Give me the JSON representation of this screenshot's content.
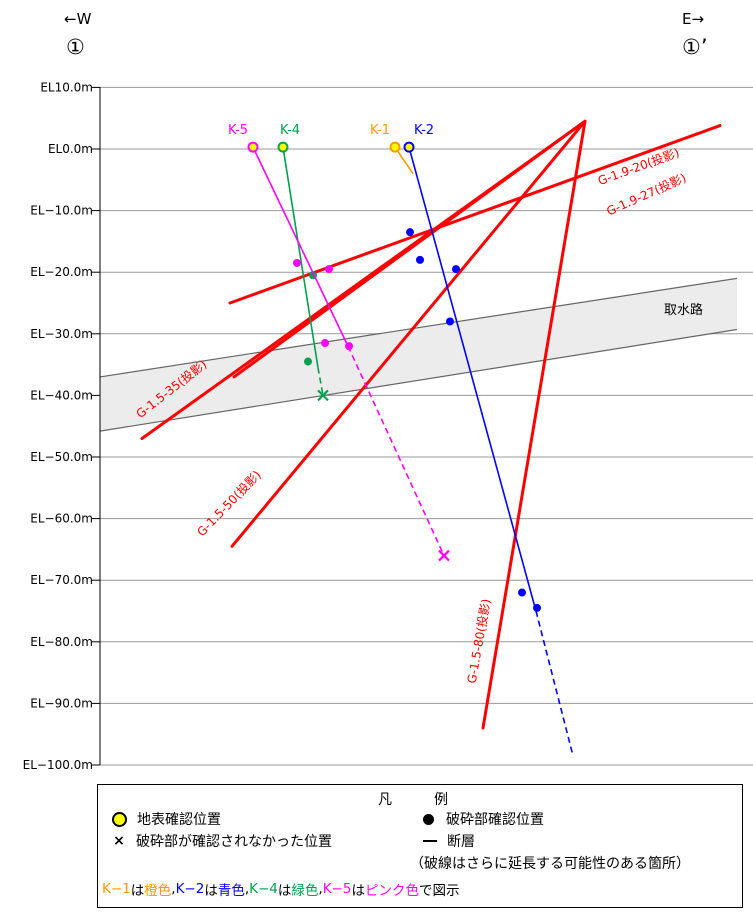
{
  "direction": {
    "west_arrow": "←W",
    "east_arrow": "E→",
    "west_mark": "①",
    "east_mark": "①’"
  },
  "axis": {
    "tick_labels": [
      "EL10.0m",
      "EL0.0m",
      "EL−10.0m",
      "EL−20.0m",
      "EL−30.0m",
      "EL−40.0m",
      "EL−50.0m",
      "EL−60.0m",
      "EL−70.0m",
      "EL−80.0m",
      "EL−90.0m",
      "EL−100.0m"
    ],
    "tick_values": [
      10,
      0,
      -10,
      -20,
      -30,
      -40,
      -50,
      -60,
      -70,
      -80,
      -90,
      -100
    ],
    "range": [
      10,
      -100
    ]
  },
  "colors": {
    "orange": "#ff9900",
    "blue": "#0000ff",
    "green": "#00a050",
    "pink": "#ff00ff",
    "fault": "#ff0000",
    "yellow": "#ffff00"
  },
  "waterway_label": "取水路",
  "boreholes": [
    {
      "id": "K-1",
      "label": "K-1",
      "color": "#ff9900",
      "top_el": 0.3,
      "segments": [
        {
          "from": [
            395,
            0.3
          ],
          "to": [
            413,
            -4.0
          ],
          "dashed": false
        }
      ],
      "points": []
    },
    {
      "id": "K-2",
      "label": "K-2",
      "color": "#0000ff",
      "top_el": 0.3,
      "segments": [
        {
          "from": [
            409,
            0.3
          ],
          "to": [
            536,
            -75.0
          ],
          "dashed": false
        },
        {
          "from": [
            536,
            -75.0
          ],
          "to": [
            573,
            -98.5
          ],
          "dashed": true
        }
      ],
      "points": [
        [
          410,
          -13.5
        ],
        [
          420,
          -18.0
        ],
        [
          456,
          -19.5
        ],
        [
          450,
          -28.0
        ],
        [
          522,
          -72.0
        ],
        [
          537,
          -74.5
        ]
      ],
      "not_found": []
    },
    {
      "id": "K-4",
      "label": "K-4",
      "color": "#00a050",
      "top_el": 0.3,
      "segments": [
        {
          "from": [
            283,
            0.3
          ],
          "to": [
            318,
            -35.5
          ],
          "dashed": false
        },
        {
          "from": [
            318,
            -35.5
          ],
          "to": [
            323,
            -40.0
          ],
          "dashed": true
        }
      ],
      "points": [
        [
          313,
          -20.5
        ],
        [
          308,
          -34.5
        ]
      ],
      "not_found": [
        [
          323,
          -40.0
        ]
      ]
    },
    {
      "id": "K-5",
      "label": "K-5",
      "color": "#ff00ff",
      "top_el": 0.3,
      "segments": [
        {
          "from": [
            253,
            0.3
          ],
          "to": [
            348,
            -32.0
          ],
          "dashed": false
        },
        {
          "from": [
            348,
            -32.0
          ],
          "to": [
            444,
            -66.0
          ],
          "dashed": true
        }
      ],
      "points": [
        [
          297,
          -18.5
        ],
        [
          329,
          -19.5
        ],
        [
          325,
          -31.5
        ],
        [
          349,
          -32.0
        ]
      ],
      "not_found": [
        [
          444,
          -66.0
        ]
      ]
    }
  ],
  "faults": [
    {
      "name": "G-1.9-20(投影)",
      "from": [
        234,
        -37.0
      ],
      "to": [
        585,
        4.5
      ],
      "dir": "up",
      "label_anchor": [
        640,
        -3.5
      ],
      "label_rot": -20
    },
    {
      "name": "G-1.9-27(投影)",
      "from": [
        230,
        -25.0
      ],
      "to": [
        720,
        3.8
      ],
      "dir": "up",
      "label_anchor": [
        648,
        -8.0
      ],
      "label_rot": -24
    },
    {
      "name": "G-1.5-35(投影)",
      "from": [
        142,
        -47.0
      ],
      "to": [
        585,
        4.5
      ],
      "dir": "up",
      "label_anchor": [
        174,
        -39.5
      ],
      "label_rot": -38
    },
    {
      "name": "G-1.5-50(投影)",
      "from": [
        232,
        -64.5
      ],
      "to": [
        585,
        4.5
      ],
      "dir": "up",
      "label_anchor": [
        232,
        -58.0
      ],
      "label_rot": -46
    },
    {
      "name": "G-1.5-80(投影)",
      "from": [
        483,
        -94.0
      ],
      "to": [
        585,
        4.5
      ],
      "dir": "up",
      "label_anchor": [
        483,
        -80.0
      ],
      "label_rot": -80
    }
  ],
  "waterway": {
    "upper": [
      [
        100,
        -37.0
      ],
      [
        737,
        -21.0
      ]
    ],
    "lower": [
      [
        100,
        -45.8
      ],
      [
        737,
        -29.3
      ]
    ]
  },
  "legend": {
    "title": "凡　例",
    "surface": "地表確認位置",
    "fracture_found": "破砕部確認位置",
    "fracture_not_found": "破砕部が確認されなかった位置",
    "fault": "断層",
    "fault_note": "（破線はさらに延長する可能性のある箇所）",
    "caption_parts": [
      {
        "text": "K−1",
        "color": "#ff9900"
      },
      {
        "text": "は",
        "color": "#000000"
      },
      {
        "text": "橙色",
        "color": "#ff9900"
      },
      {
        "text": ", ",
        "color": "#000000"
      },
      {
        "text": "K−2",
        "color": "#0000ff"
      },
      {
        "text": "は",
        "color": "#000000"
      },
      {
        "text": "青色",
        "color": "#0000ff"
      },
      {
        "text": ", ",
        "color": "#000000"
      },
      {
        "text": "K−4",
        "color": "#00a050"
      },
      {
        "text": "は",
        "color": "#000000"
      },
      {
        "text": "緑色",
        "color": "#00a050"
      },
      {
        "text": ", ",
        "color": "#000000"
      },
      {
        "text": "K−5",
        "color": "#ff00ff"
      },
      {
        "text": "は",
        "color": "#000000"
      },
      {
        "text": "ピンク色",
        "color": "#ff00ff"
      },
      {
        "text": "で図示",
        "color": "#000000"
      }
    ]
  }
}
